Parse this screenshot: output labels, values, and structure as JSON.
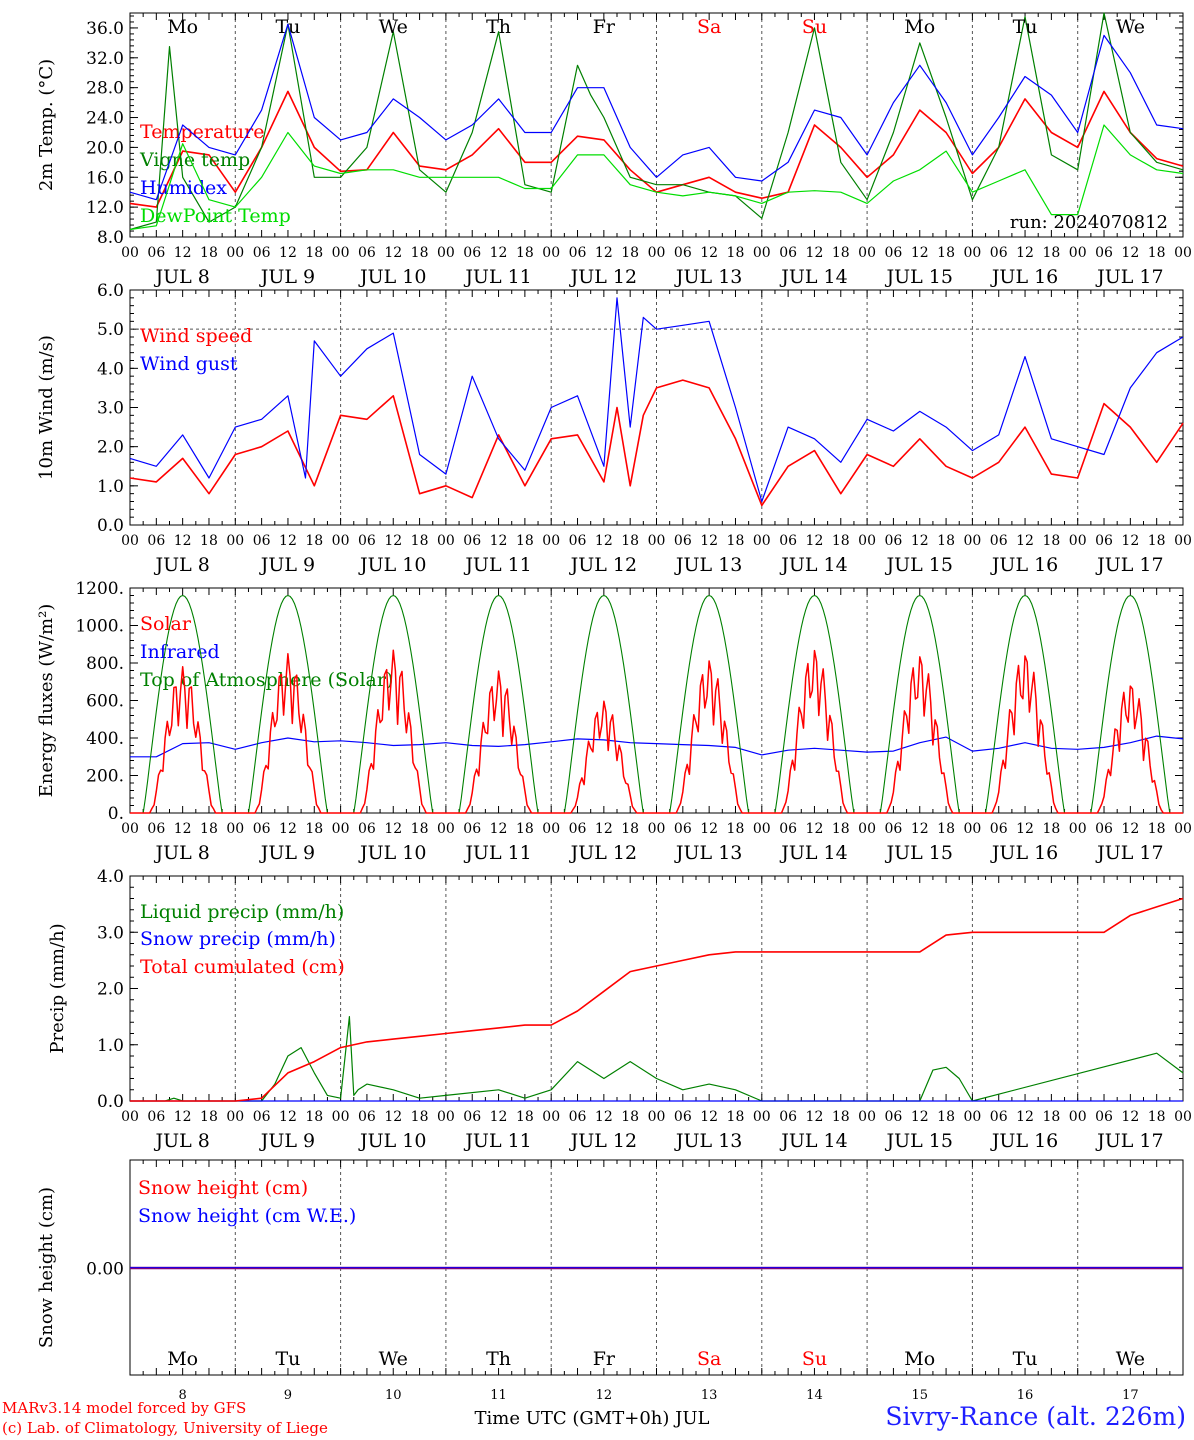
{
  "days": [
    "Mo",
    "Tu",
    "We",
    "Th",
    "Fr",
    "Sa",
    "Su",
    "Mo",
    "Tu",
    "We"
  ],
  "weekend_days": [
    5,
    6
  ],
  "date_labels": [
    "JUL  8",
    "JUL  9",
    "JUL 10",
    "JUL 11",
    "JUL 12",
    "JUL 13",
    "JUL 14",
    "JUL 15",
    "JUL 16",
    "JUL 17"
  ],
  "hour_ticks": [
    "00",
    "06",
    "12",
    "18"
  ],
  "hour_last": "00",
  "day_numbers": [
    "8",
    "9",
    "10",
    "11",
    "12",
    "13",
    "14",
    "15",
    "16",
    "17"
  ],
  "x_title": "Time UTC (GMT+0h) JUL",
  "credits": [
    "MARv3.14 model forced by GFS",
    "(c) Lab. of Climatology, University of Liege"
  ],
  "station": "Sivry-Rance (alt. 226m)",
  "colors": {
    "red": "#ff0000",
    "green": "#008000",
    "blue": "#0000ff",
    "lightgreen": "#00dd00",
    "purple": "#800080",
    "grid": "#555555"
  },
  "chart_data": [
    {
      "type": "line",
      "ylabel": "2m Temp. (°C)",
      "ylim": [
        8,
        38
      ],
      "yticks": [
        "8.0",
        "12.0",
        "16.0",
        "20.0",
        "24.0",
        "28.0",
        "32.0",
        "36.0"
      ],
      "ytick_values": [
        8,
        12,
        16,
        20,
        24,
        28,
        32,
        36
      ],
      "annotation": "run: 2024070812",
      "x_unit": "hours from JUL 8 00 UTC",
      "series": [
        {
          "name": "Temperature",
          "color": "red",
          "x": [
            0,
            6,
            12,
            18,
            24,
            30,
            36,
            42,
            48,
            54,
            60,
            66,
            72,
            78,
            84,
            90,
            96,
            102,
            108,
            114,
            120,
            126,
            132,
            138,
            144,
            150,
            156,
            162,
            168,
            174,
            180,
            186,
            192,
            198,
            204,
            210,
            216,
            222,
            228,
            234,
            240
          ],
          "values": [
            12.5,
            12,
            19.5,
            19,
            14,
            20,
            27.5,
            20,
            16.8,
            17,
            22,
            17.5,
            17,
            19,
            22.5,
            18,
            18,
            21.5,
            21,
            17,
            14,
            15,
            16,
            14,
            13.2,
            14,
            23,
            20,
            16,
            19,
            25,
            22,
            16.5,
            20,
            26.5,
            22,
            20,
            27.5,
            22,
            18.5,
            17.5
          ]
        },
        {
          "name": "Vigne temp",
          "color": "green",
          "x": [
            0,
            6,
            9,
            12,
            18,
            24,
            30,
            36,
            42,
            48,
            54,
            60,
            66,
            72,
            78,
            84,
            90,
            96,
            102,
            105,
            108,
            114,
            120,
            126,
            132,
            138,
            144,
            150,
            156,
            162,
            168,
            174,
            180,
            186,
            192,
            198,
            204,
            210,
            216,
            222,
            228,
            234,
            240
          ],
          "values": [
            9,
            10,
            33.5,
            16,
            10,
            12,
            20,
            36.5,
            16,
            16,
            20,
            35.5,
            17,
            14,
            22,
            35.5,
            15,
            14,
            31,
            27,
            24,
            16,
            15,
            15,
            14,
            13.5,
            10.5,
            22,
            36,
            18,
            13,
            22,
            34,
            24,
            13,
            20,
            37.5,
            19,
            17,
            38,
            22,
            18,
            17
          ]
        },
        {
          "name": "Humidex",
          "color": "blue",
          "x": [
            0,
            6,
            12,
            18,
            24,
            30,
            36,
            42,
            48,
            54,
            60,
            66,
            72,
            78,
            84,
            90,
            96,
            102,
            108,
            114,
            120,
            126,
            132,
            138,
            144,
            150,
            156,
            162,
            168,
            174,
            180,
            186,
            192,
            198,
            204,
            210,
            216,
            222,
            228,
            234,
            240
          ],
          "values": [
            14,
            13,
            23,
            20,
            19,
            25,
            36.5,
            24,
            21,
            22,
            26.5,
            24,
            21,
            23,
            26.5,
            22,
            22,
            28,
            28,
            20,
            16,
            19,
            20,
            16,
            15.5,
            18,
            25,
            24,
            19,
            26,
            31,
            26,
            19,
            24,
            29.5,
            27,
            22,
            35,
            30,
            23,
            22.5
          ]
        },
        {
          "name": "DewPoint Temp",
          "color": "lightgreen",
          "x": [
            0,
            6,
            12,
            18,
            24,
            30,
            36,
            42,
            48,
            54,
            60,
            66,
            72,
            78,
            84,
            90,
            96,
            102,
            108,
            114,
            120,
            126,
            132,
            138,
            144,
            150,
            156,
            162,
            168,
            174,
            180,
            186,
            192,
            198,
            204,
            210,
            216,
            222,
            228,
            234,
            240
          ],
          "values": [
            9,
            9.5,
            20.5,
            13,
            12,
            16,
            22,
            17.5,
            16.5,
            17,
            17,
            16,
            16,
            16,
            16,
            14.5,
            14.5,
            19,
            19,
            15,
            14,
            13.5,
            14,
            13.5,
            12.5,
            14,
            14.2,
            14,
            12.5,
            15.5,
            17,
            19.5,
            14,
            15.5,
            17,
            11,
            11,
            23,
            19,
            17,
            16.5
          ]
        }
      ]
    },
    {
      "type": "line",
      "ylabel": "10m Wind (m/s)",
      "ylim": [
        0,
        6
      ],
      "yticks": [
        "0.0",
        "1.0",
        "2.0",
        "3.0",
        "4.0",
        "5.0",
        "6.0"
      ],
      "ytick_values": [
        0,
        1,
        2,
        3,
        4,
        5,
        6
      ],
      "hline": 5.0,
      "x_unit": "hours from JUL 8 00 UTC",
      "series": [
        {
          "name": "Wind speed",
          "color": "red",
          "x": [
            0,
            6,
            12,
            18,
            24,
            30,
            36,
            42,
            48,
            54,
            60,
            66,
            72,
            78,
            84,
            90,
            96,
            102,
            108,
            111,
            114,
            117,
            120,
            126,
            132,
            138,
            144,
            150,
            156,
            162,
            168,
            174,
            180,
            186,
            192,
            198,
            204,
            210,
            216,
            222,
            228,
            234,
            240
          ],
          "values": [
            1.2,
            1.1,
            1.7,
            0.8,
            1.8,
            2.0,
            2.4,
            1.0,
            2.8,
            2.7,
            3.3,
            0.8,
            1.0,
            0.7,
            2.3,
            1.0,
            2.2,
            2.3,
            1.1,
            3.0,
            1.0,
            2.8,
            3.5,
            3.7,
            3.5,
            2.2,
            0.5,
            1.5,
            1.9,
            0.8,
            1.8,
            1.5,
            2.2,
            1.5,
            1.2,
            1.6,
            2.5,
            1.3,
            1.2,
            3.1,
            2.5,
            1.6,
            2.6
          ]
        },
        {
          "name": "Wind gust",
          "color": "blue",
          "x": [
            0,
            6,
            12,
            18,
            24,
            30,
            36,
            40,
            42,
            48,
            54,
            60,
            66,
            72,
            78,
            84,
            90,
            96,
            102,
            108,
            111,
            114,
            117,
            120,
            126,
            132,
            138,
            144,
            150,
            156,
            162,
            168,
            174,
            180,
            186,
            192,
            198,
            204,
            210,
            216,
            222,
            228,
            234,
            240
          ],
          "values": [
            1.7,
            1.5,
            2.3,
            1.2,
            2.5,
            2.7,
            3.3,
            1.2,
            4.7,
            3.8,
            4.5,
            4.9,
            1.8,
            1.3,
            3.8,
            2.2,
            1.4,
            3.0,
            3.3,
            1.5,
            5.8,
            2.5,
            5.3,
            5.0,
            5.1,
            5.2,
            3.0,
            0.6,
            2.5,
            2.2,
            1.6,
            2.7,
            2.4,
            2.9,
            2.5,
            1.9,
            2.3,
            4.3,
            2.2,
            2.0,
            1.8,
            3.5,
            4.4,
            4.8
          ]
        }
      ]
    },
    {
      "type": "line",
      "ylabel": "Energy fluxes (W/m²)",
      "ylim": [
        0,
        1200
      ],
      "yticks": [
        "0.",
        "200.",
        "400.",
        "600.",
        "800.",
        "1000.",
        "1200."
      ],
      "ytick_values": [
        0,
        200,
        400,
        600,
        800,
        1000,
        1200
      ],
      "x_unit": "hours from JUL 8 00 UTC",
      "toa_peak": 1160,
      "solar_peaks": [
        780,
        850,
        870,
        760,
        600,
        820,
        880,
        850,
        860,
        700
      ],
      "series": [
        {
          "name": "Solar",
          "color": "red"
        },
        {
          "name": "Infrared",
          "color": "blue",
          "x": [
            0,
            6,
            12,
            18,
            24,
            30,
            36,
            42,
            48,
            54,
            60,
            66,
            72,
            78,
            84,
            90,
            96,
            102,
            108,
            114,
            120,
            126,
            132,
            138,
            144,
            150,
            156,
            162,
            168,
            174,
            180,
            186,
            192,
            198,
            204,
            210,
            216,
            222,
            228,
            234,
            240
          ],
          "values": [
            300,
            300,
            370,
            375,
            340,
            375,
            400,
            380,
            385,
            375,
            360,
            365,
            375,
            360,
            355,
            365,
            380,
            395,
            390,
            375,
            370,
            365,
            360,
            350,
            310,
            335,
            345,
            335,
            325,
            330,
            375,
            405,
            330,
            345,
            375,
            345,
            340,
            350,
            375,
            410,
            395
          ]
        },
        {
          "name": "Top of Atmosphere (Solar)",
          "color": "green"
        }
      ]
    },
    {
      "type": "line",
      "ylabel": "Precip (mm/h)",
      "ylim": [
        0,
        4
      ],
      "yticks": [
        "0.0",
        "1.0",
        "2.0",
        "3.0",
        "4.0"
      ],
      "ytick_values": [
        0,
        1,
        2,
        3,
        4
      ],
      "x_unit": "hours from JUL 8 00 UTC",
      "series": [
        {
          "name": "Liquid precip (mm/h)",
          "color": "green",
          "x": [
            0,
            8,
            10,
            12,
            30,
            33,
            36,
            39,
            42,
            45,
            48,
            50,
            51,
            52,
            54,
            60,
            66,
            72,
            84,
            90,
            96,
            102,
            108,
            114,
            120,
            126,
            132,
            138,
            144,
            180,
            183,
            186,
            189,
            192,
            234,
            240
          ],
          "values": [
            0,
            0,
            0.05,
            0,
            0,
            0.3,
            0.8,
            0.95,
            0.5,
            0.1,
            0.05,
            1.5,
            0.1,
            0.2,
            0.3,
            0.2,
            0.05,
            0.1,
            0.2,
            0.05,
            0.2,
            0.7,
            0.4,
            0.7,
            0.4,
            0.2,
            0.3,
            0.2,
            0,
            0,
            0.55,
            0.6,
            0.4,
            0,
            0.85,
            0.5
          ]
        },
        {
          "name": "Snow precip (mm/h)",
          "color": "blue",
          "x": [
            0,
            240
          ],
          "values": [
            0,
            0
          ]
        },
        {
          "name": "Total cumulated (cm)",
          "color": "red",
          "x": [
            0,
            12,
            24,
            30,
            36,
            42,
            48,
            54,
            60,
            66,
            72,
            78,
            84,
            90,
            96,
            102,
            108,
            114,
            120,
            126,
            132,
            138,
            144,
            162,
            168,
            180,
            186,
            192,
            222,
            228,
            234,
            240
          ],
          "values": [
            0,
            0,
            0,
            0.05,
            0.5,
            0.7,
            0.95,
            1.05,
            1.1,
            1.15,
            1.2,
            1.25,
            1.3,
            1.35,
            1.35,
            1.6,
            1.95,
            2.3,
            2.4,
            2.5,
            2.6,
            2.65,
            2.65,
            2.65,
            2.65,
            2.65,
            2.95,
            3.0,
            3.0,
            3.3,
            3.45,
            3.6
          ]
        }
      ]
    },
    {
      "type": "line",
      "ylabel": "Snow height (cm)",
      "yticks": [
        "0.00"
      ],
      "x_unit": "hours from JUL 8 00 UTC",
      "series": [
        {
          "name": "Snow height (cm)",
          "color": "red",
          "x": [
            0,
            240
          ],
          "values": [
            0,
            0
          ]
        },
        {
          "name": "Snow height (cm W.E.)",
          "color": "blue",
          "x": [
            0,
            240
          ],
          "values": [
            0,
            0
          ]
        }
      ]
    }
  ]
}
